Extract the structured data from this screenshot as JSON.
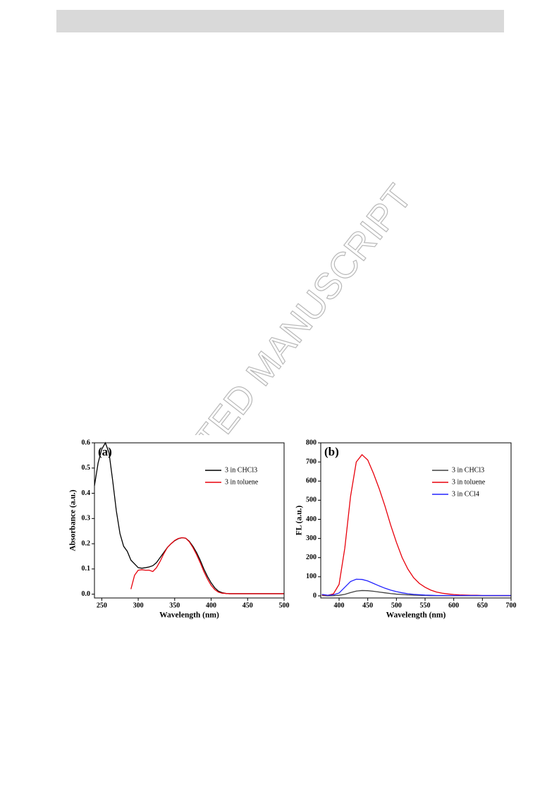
{
  "watermark": "ACCEPTED MANUSCRIPT",
  "chart_data": [
    {
      "type": "line",
      "panel_label": "(a)",
      "x_label": "Wavelength (nm)",
      "y_label": "Absorbance (a.u.)",
      "xlim": [
        240,
        500
      ],
      "ylim": [
        -0.015,
        0.6
      ],
      "xticks": [
        250,
        300,
        350,
        400,
        450,
        500
      ],
      "yticks": [
        {
          "value": 0,
          "label": "0.0"
        },
        0.1,
        0.2,
        0.3,
        0.4,
        0.5,
        0.6
      ],
      "legend": "upper right",
      "x": [
        240,
        245,
        250,
        255,
        260,
        265,
        270,
        275,
        280,
        285,
        290,
        295,
        300,
        305,
        310,
        315,
        320,
        325,
        330,
        335,
        340,
        345,
        350,
        355,
        360,
        365,
        370,
        375,
        380,
        385,
        390,
        395,
        400,
        405,
        410,
        415,
        420,
        425,
        430,
        435,
        440,
        445,
        450,
        455,
        460,
        465,
        470,
        475,
        480,
        485,
        490,
        495,
        500
      ],
      "series": [
        {
          "name": "3 in CHCl3",
          "color": "#000000",
          "values": [
            0.43,
            0.52,
            0.575,
            0.6,
            0.56,
            0.45,
            0.33,
            0.24,
            0.19,
            0.17,
            0.135,
            0.12,
            0.105,
            0.103,
            0.105,
            0.108,
            0.113,
            0.125,
            0.145,
            0.165,
            0.185,
            0.2,
            0.212,
            0.22,
            0.224,
            0.222,
            0.21,
            0.19,
            0.165,
            0.135,
            0.1,
            0.07,
            0.045,
            0.025,
            0.012,
            0.006,
            0.003,
            0.002,
            0.002,
            0.002,
            0.002,
            0.002,
            0.002,
            0.002,
            0.002,
            0.002,
            0.002,
            0.002,
            0.002,
            0.002,
            0.002,
            0.002,
            0.002
          ]
        },
        {
          "name": "3 in toluene",
          "color": "#e8000b",
          "values": [
            null,
            null,
            null,
            null,
            null,
            null,
            null,
            null,
            null,
            null,
            0.02,
            0.075,
            0.095,
            0.097,
            0.095,
            0.095,
            0.09,
            0.105,
            0.13,
            0.16,
            0.185,
            0.2,
            0.213,
            0.221,
            0.224,
            0.222,
            0.208,
            0.185,
            0.157,
            0.125,
            0.09,
            0.06,
            0.035,
            0.018,
            0.008,
            0.004,
            0.003,
            0.002,
            0.002,
            0.002,
            0.002,
            0.002,
            0.002,
            0.002,
            0.002,
            0.002,
            0.002,
            0.002,
            0.002,
            0.002,
            0.002,
            0.002,
            0.002
          ]
        }
      ]
    },
    {
      "type": "line",
      "panel_label": "(b)",
      "x_label": "Wavelength (nm)",
      "y_label": "FL (a.u.)",
      "xlim": [
        368,
        700
      ],
      "ylim": [
        -11,
        800
      ],
      "xticks": [
        400,
        450,
        500,
        550,
        600,
        650,
        700
      ],
      "yticks": [
        0,
        100,
        200,
        300,
        400,
        500,
        600,
        700,
        800
      ],
      "legend": "upper right",
      "x": [
        370,
        380,
        390,
        400,
        410,
        420,
        430,
        440,
        450,
        460,
        470,
        480,
        490,
        500,
        510,
        520,
        530,
        540,
        550,
        560,
        570,
        580,
        590,
        600,
        610,
        620,
        630,
        640,
        650,
        660,
        670,
        680,
        690,
        700
      ],
      "series": [
        {
          "name": "3 in CHCl3",
          "color": "#404040",
          "values": [
            2,
            0,
            1,
            3,
            8,
            17,
            25,
            28,
            27,
            24,
            20,
            16,
            12,
            9,
            7,
            5,
            4,
            3,
            2,
            1,
            1,
            1,
            1,
            1,
            1,
            1,
            1,
            1,
            1,
            1,
            1,
            1,
            1,
            1
          ]
        },
        {
          "name": "3 in toluene",
          "color": "#e8000b",
          "values": [
            5,
            3,
            10,
            60,
            250,
            520,
            700,
            738,
            710,
            640,
            560,
            470,
            370,
            280,
            200,
            140,
            95,
            65,
            45,
            30,
            20,
            14,
            10,
            7,
            5,
            4,
            3,
            3,
            2,
            2,
            2,
            2,
            2,
            2
          ]
        },
        {
          "name": "3 in CCl4",
          "color": "#2323ff",
          "values": [
            8,
            3,
            5,
            15,
            45,
            75,
            87,
            86,
            78,
            65,
            52,
            40,
            30,
            22,
            16,
            11,
            8,
            6,
            4,
            3,
            2,
            2,
            2,
            2,
            2,
            2,
            2,
            2,
            2,
            2,
            2,
            2,
            2,
            2
          ]
        }
      ]
    }
  ]
}
